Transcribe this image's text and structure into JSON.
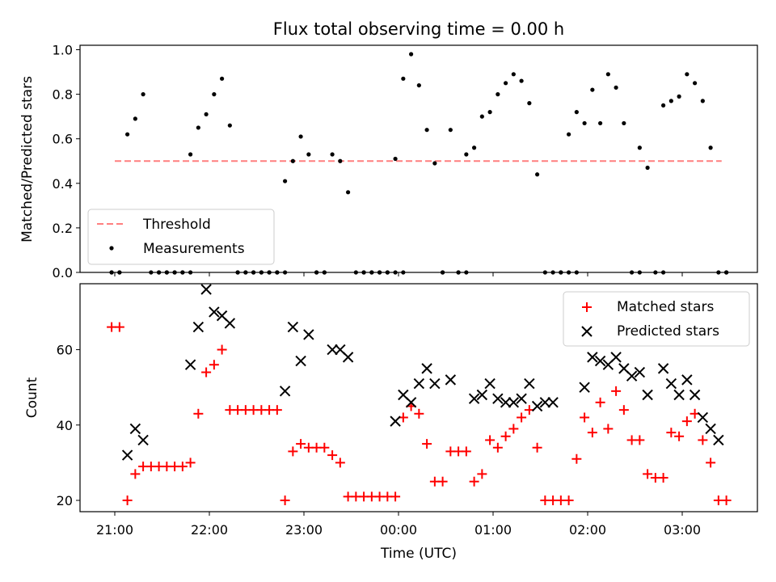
{
  "chart_data": {
    "type": "scatter",
    "title": "Flux total observing time = 0.00 h",
    "xlabel": "Time (UTC)",
    "x_tick_labels": [
      "21:00",
      "22:00",
      "23:00",
      "00:00",
      "01:00",
      "02:00",
      "03:00"
    ],
    "x_tick_times": [
      "21:00",
      "22:00",
      "23:00",
      "00:00",
      "01:00",
      "02:00",
      "03:00"
    ],
    "xlim": [
      "20:43",
      "04:00"
    ],
    "panels": [
      {
        "id": "ratio",
        "ylabel": "Matched/Predicted stars",
        "ylim": [
          0.0,
          1.02
        ],
        "yticks": [
          0.0,
          0.2,
          0.4,
          0.6,
          0.8,
          1.0
        ],
        "y_tick_labels": [
          "0.0",
          "0.2",
          "0.4",
          "0.6",
          "0.8",
          "1.0"
        ],
        "legend_position": "lower-left",
        "threshold": {
          "name": "Threshold",
          "value": 0.5,
          "x_range": [
            "21:00",
            "03:25"
          ],
          "color": "#ff7f7f",
          "style": "dashed"
        },
        "series": [
          {
            "name": "Measurements",
            "marker": "dot",
            "color": "#000000",
            "x": [
              "20:58",
              "21:03",
              "21:08",
              "21:13",
              "21:18",
              "21:23",
              "21:28",
              "21:33",
              "21:38",
              "21:43",
              "21:48",
              "21:53",
              "21:58",
              "22:03",
              "22:08",
              "22:13",
              "22:18",
              "22:23",
              "22:28",
              "22:33",
              "22:38",
              "22:43",
              "22:48",
              "22:53",
              "22:58",
              "23:03",
              "23:08",
              "23:13",
              "23:18",
              "23:23",
              "23:28",
              "23:33",
              "23:38",
              "23:43",
              "23:48",
              "23:53",
              "23:58",
              "00:03",
              "00:08",
              "00:13",
              "00:18",
              "00:23",
              "00:28",
              "00:33",
              "00:38",
              "00:43",
              "00:48",
              "00:53",
              "00:58",
              "01:03",
              "01:08",
              "01:13",
              "01:18",
              "01:23",
              "01:28",
              "01:33",
              "01:38",
              "01:43",
              "01:48",
              "01:53",
              "01:58",
              "02:03",
              "02:08",
              "02:13",
              "02:18",
              "02:23",
              "02:28",
              "02:33",
              "02:38",
              "02:43",
              "02:48",
              "02:53",
              "02:58",
              "03:03",
              "03:08",
              "03:13",
              "03:18",
              "03:23",
              "03:28",
              "20:58",
              "21:03",
              "21:28",
              "21:33",
              "21:38",
              "21:43",
              "21:48",
              "22:18",
              "22:23",
              "22:28",
              "22:33",
              "22:38",
              "22:43",
              "22:48",
              "23:08",
              "23:13",
              "23:38",
              "23:43",
              "23:48",
              "23:53",
              "23:58",
              "00:03",
              "00:28",
              "00:38",
              "00:43",
              "01:43",
              "01:48",
              "01:53",
              "02:33",
              "02:48",
              "03:28"
            ],
            "y": [
              0.0,
              0.0,
              0.62,
              0.69,
              0.8,
              0.0,
              0.0,
              0.0,
              0.0,
              0.0,
              0.53,
              0.65,
              0.71,
              0.8,
              0.87,
              0.66,
              0.0,
              0.0,
              0.0,
              0.0,
              0.0,
              0.0,
              0.41,
              0.5,
              0.61,
              0.53,
              0.0,
              0.0,
              0.53,
              0.5,
              0.36,
              0.0,
              0.0,
              0.0,
              0.0,
              0.0,
              0.51,
              0.87,
              0.98,
              0.84,
              0.64,
              0.49,
              0.0,
              0.64,
              0.0,
              0.53,
              0.56,
              0.7,
              0.72,
              0.8,
              0.85,
              0.89,
              0.86,
              0.76,
              0.44,
              0.0,
              0.0,
              0.0,
              0.62,
              0.72,
              0.67,
              0.82,
              0.67,
              0.89,
              0.83,
              0.67,
              0.0,
              0.56,
              0.47,
              0.0,
              0.75,
              0.77,
              0.79,
              0.89,
              0.85,
              0.77,
              0.56,
              0.0,
              0.0,
              0.0,
              0.0,
              0.0,
              0.0,
              0.0,
              0.0,
              0.0,
              0.0,
              0.0,
              0.0,
              0.0,
              0.0,
              0.0,
              0.0,
              0.0,
              0.0,
              0.0,
              0.0,
              0.0,
              0.0,
              0.0,
              0.0,
              0.0,
              0.0,
              0.0,
              0.0,
              0.0,
              0.0,
              0.0,
              0.0,
              0.0
            ]
          }
        ]
      },
      {
        "id": "count",
        "ylabel": "Count",
        "ylim": [
          17.0,
          77.5
        ],
        "yticks": [
          20,
          40,
          60
        ],
        "y_tick_labels": [
          "20",
          "40",
          "60"
        ],
        "legend_position": "upper-right",
        "series": [
          {
            "name": "Matched stars",
            "marker": "plus",
            "color": "#ff0000",
            "x": [
              "20:58",
              "21:03",
              "21:08",
              "21:13",
              "21:18",
              "21:23",
              "21:28",
              "21:33",
              "21:38",
              "21:43",
              "21:48",
              "21:53",
              "21:58",
              "22:03",
              "22:08",
              "22:13",
              "22:18",
              "22:23",
              "22:28",
              "22:33",
              "22:38",
              "22:43",
              "22:48",
              "22:53",
              "22:58",
              "23:03",
              "23:08",
              "23:13",
              "23:18",
              "23:23",
              "23:28",
              "23:33",
              "23:38",
              "23:43",
              "23:48",
              "23:53",
              "23:58",
              "00:03",
              "00:08",
              "00:13",
              "00:18",
              "00:23",
              "00:28",
              "00:33",
              "00:38",
              "00:43",
              "00:48",
              "00:53",
              "00:58",
              "01:03",
              "01:08",
              "01:13",
              "01:18",
              "01:23",
              "01:28",
              "01:33",
              "01:38",
              "01:43",
              "01:48",
              "01:53",
              "01:58",
              "02:03",
              "02:08",
              "02:13",
              "02:18",
              "02:23",
              "02:28",
              "02:33",
              "02:38",
              "02:43",
              "02:48",
              "02:53",
              "02:58",
              "03:03",
              "03:08",
              "03:13",
              "03:18",
              "03:23",
              "03:28"
            ],
            "y": [
              66,
              66,
              20,
              27,
              29,
              29,
              29,
              29,
              29,
              29,
              30,
              43,
              54,
              56,
              60,
              44,
              44,
              44,
              44,
              44,
              44,
              44,
              20,
              33,
              35,
              34,
              34,
              34,
              32,
              30,
              21,
              21,
              21,
              21,
              21,
              21,
              21,
              42,
              45,
              43,
              35,
              25,
              25,
              33,
              33,
              33,
              25,
              27,
              36,
              34,
              37,
              39,
              42,
              44,
              34,
              20,
              20,
              20,
              20,
              31,
              42,
              38,
              46,
              39,
              49,
              44,
              36,
              36,
              27,
              26,
              26,
              38,
              37,
              41,
              43,
              36,
              30,
              20,
              20
            ]
          },
          {
            "name": "Predicted stars",
            "marker": "x",
            "color": "#000000",
            "x": [
              "21:08",
              "21:13",
              "21:18",
              "21:48",
              "21:53",
              "21:58",
              "22:03",
              "22:08",
              "22:13",
              "22:48",
              "22:53",
              "22:58",
              "23:03",
              "23:18",
              "23:23",
              "23:28",
              "23:58",
              "00:03",
              "00:08",
              "00:13",
              "00:18",
              "00:23",
              "00:33",
              "00:48",
              "00:53",
              "00:58",
              "01:03",
              "01:08",
              "01:13",
              "01:18",
              "01:23",
              "01:28",
              "01:33",
              "01:38",
              "01:58",
              "02:03",
              "02:08",
              "02:13",
              "02:18",
              "02:23",
              "02:28",
              "02:33",
              "02:38",
              "02:48",
              "02:53",
              "02:58",
              "03:03",
              "03:08",
              "03:13",
              "03:18",
              "03:23"
            ],
            "y": [
              32,
              39,
              36,
              56,
              66,
              76,
              70,
              69,
              67,
              49,
              66,
              57,
              64,
              60,
              60,
              58,
              41,
              48,
              46,
              51,
              55,
              51,
              52,
              47,
              48,
              51,
              47,
              46,
              46,
              47,
              51,
              45,
              46,
              46,
              50,
              58,
              57,
              56,
              58,
              55,
              53,
              54,
              48,
              55,
              51,
              48,
              52,
              48,
              42,
              39,
              36
            ]
          }
        ]
      }
    ]
  }
}
